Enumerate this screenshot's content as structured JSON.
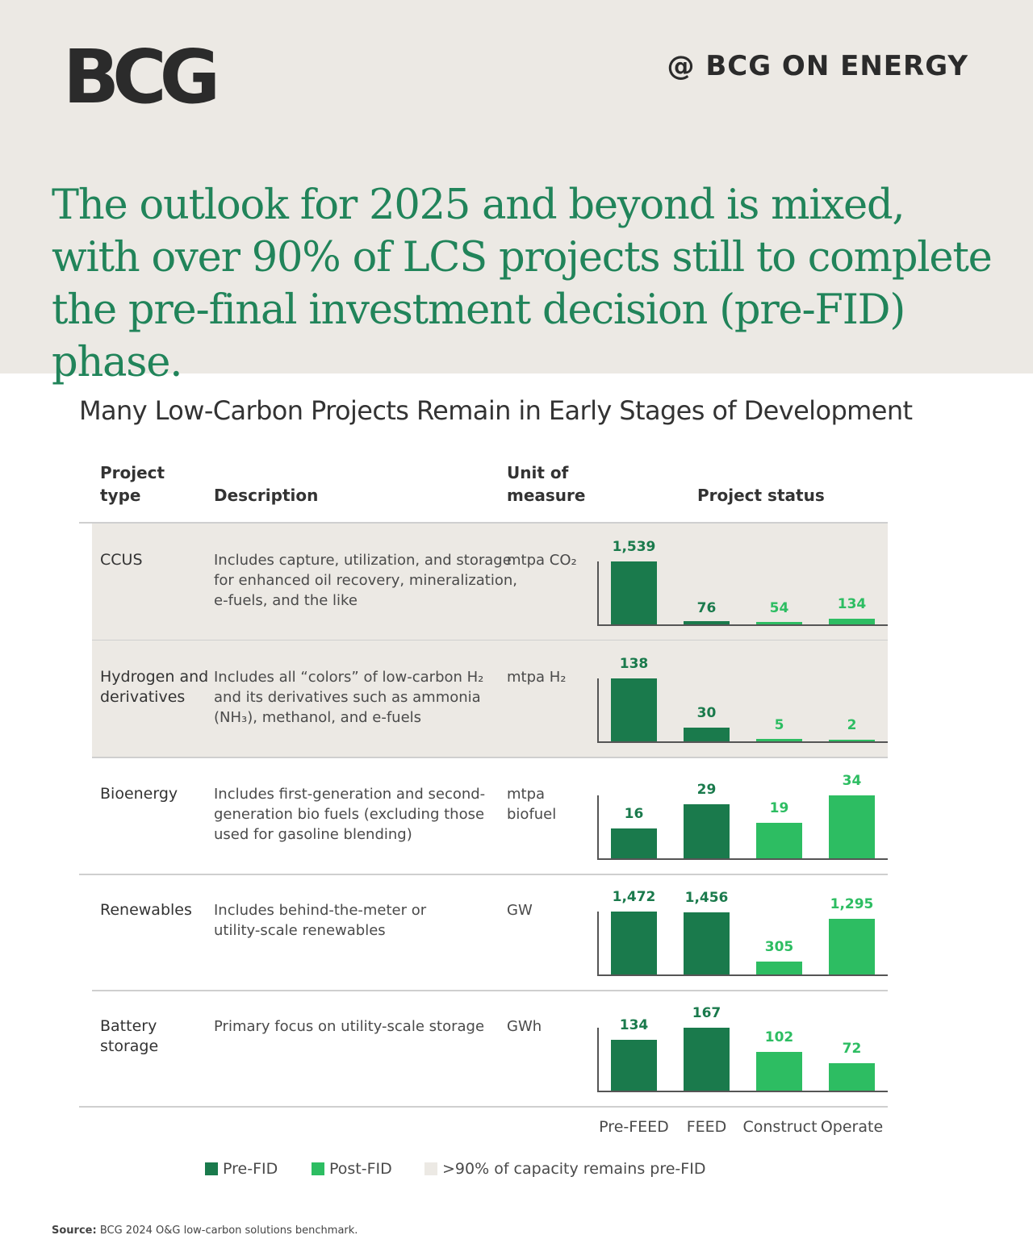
{
  "header": {
    "logo": "BCG",
    "handle": "@ BCG ON ENERGY",
    "headline": "The outlook for 2025 and beyond is mixed, with over 90% of LCS projects still to complete the pre-final investment decision (pre-FID) phase."
  },
  "colors": {
    "pre_fid": "#1a7a4c",
    "post_fid": "#2dbd62",
    "highlight_bg": "#ece9e4",
    "headline": "#21845a"
  },
  "table": {
    "headers": {
      "project_type_1": "Project",
      "project_type_2": "type",
      "description": "Description",
      "unit_1": "Unit of",
      "unit_2": "measure",
      "status": "Project status"
    }
  },
  "chart_data": {
    "type": "bar",
    "title": "Many Low-Carbon Projects Remain in Early Stages of Development",
    "categories": [
      "Pre-FEED",
      "FEED",
      "Construct",
      "Operate"
    ],
    "category_phase": [
      "Pre-FID",
      "Pre-FID",
      "Post-FID",
      "Post-FID"
    ],
    "rows": [
      {
        "type_lines": [
          "CCUS"
        ],
        "description_lines": [
          "Includes capture, utilization, and storage",
          "for enhanced oil recovery, mineralization,",
          "e-fuels, and the like"
        ],
        "unit_lines": [
          "mtpa CO₂"
        ],
        "values": [
          1539,
          76,
          54,
          134
        ],
        "labels": [
          "1,539",
          "76",
          "54",
          "134"
        ],
        "highlight": true
      },
      {
        "type_lines": [
          "Hydrogen and",
          "derivatives"
        ],
        "description_lines": [
          "Includes all “colors” of low-carbon H₂",
          "and its derivatives such as ammonia",
          "(NH₃), methanol, and e-fuels"
        ],
        "unit_lines": [
          "mtpa H₂"
        ],
        "values": [
          138,
          30,
          5,
          2
        ],
        "labels": [
          "138",
          "30",
          "5",
          "2"
        ],
        "highlight": true
      },
      {
        "type_lines": [
          "Bioenergy"
        ],
        "description_lines": [
          "Includes first-generation and second-",
          "generation bio fuels (excluding those",
          "used for gasoline blending)"
        ],
        "unit_lines": [
          "mtpa",
          "biofuel"
        ],
        "values": [
          16,
          29,
          19,
          34
        ],
        "labels": [
          "16",
          "29",
          "19",
          "34"
        ],
        "highlight": false
      },
      {
        "type_lines": [
          "Renewables"
        ],
        "description_lines": [
          "Includes behind-the-meter or",
          "utility-scale renewables"
        ],
        "unit_lines": [
          "GW"
        ],
        "values": [
          1472,
          1456,
          305,
          1295
        ],
        "labels": [
          "1,472",
          "1,456",
          "305",
          "1,295"
        ],
        "highlight": false
      },
      {
        "type_lines": [
          "Battery",
          "storage"
        ],
        "description_lines": [
          "Primary focus on utility-scale storage"
        ],
        "unit_lines": [
          "GWh"
        ],
        "values": [
          134,
          167,
          102,
          72
        ],
        "labels": [
          "134",
          "167",
          "102",
          "72"
        ],
        "highlight": false
      }
    ],
    "legend": [
      {
        "label": "Pre-FID",
        "color": "#1a7a4c"
      },
      {
        "label": "Post-FID",
        "color": "#2dbd62"
      },
      {
        "label": ">90% of capacity remains pre-FID",
        "color": "#ece9e4"
      }
    ]
  },
  "source": {
    "label": "Source:",
    "text": "BCG 2024 O&G low-carbon solutions benchmark."
  }
}
